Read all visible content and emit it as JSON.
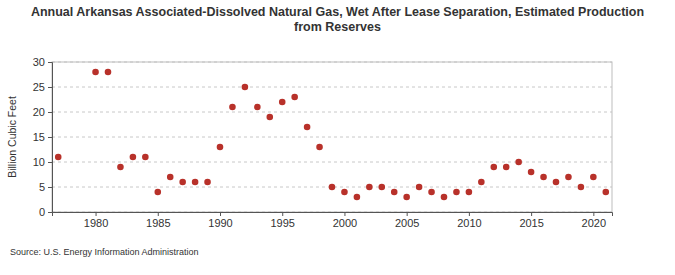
{
  "chart_data": {
    "type": "scatter",
    "title": "Annual Arkansas Associated-Dissolved Natural Gas, Wet After Lease Separation, Estimated Production from Reserves",
    "y_label": "Billion Cubic Feet",
    "source": "Source: U.S. Energy Information Administration",
    "x": [
      1977,
      1980,
      1981,
      1982,
      1983,
      1984,
      1985,
      1986,
      1987,
      1988,
      1989,
      1990,
      1991,
      1992,
      1993,
      1994,
      1995,
      1996,
      1997,
      1998,
      1999,
      2000,
      2001,
      2002,
      2003,
      2004,
      2005,
      2006,
      2007,
      2008,
      2009,
      2010,
      2011,
      2012,
      2013,
      2014,
      2015,
      2016,
      2017,
      2018,
      2019,
      2020,
      2021
    ],
    "values": [
      11,
      28,
      28,
      9,
      11,
      11,
      4,
      7,
      6,
      6,
      6,
      13,
      21,
      25,
      21,
      19,
      22,
      23,
      17,
      13,
      5,
      4,
      3,
      5,
      5,
      4,
      3,
      5,
      4,
      3,
      4,
      4,
      6,
      9,
      9,
      10,
      8,
      7,
      6,
      7,
      5,
      7,
      4
    ],
    "color": "#b8312a",
    "marker": "circle",
    "xlim": [
      1976.5,
      2021.5
    ],
    "xticks": [
      1980,
      1985,
      1990,
      1995,
      2000,
      2005,
      2010,
      2015,
      2020
    ],
    "ylim": [
      0,
      30
    ],
    "yticks": [
      0,
      5,
      10,
      15,
      20,
      25,
      30
    ],
    "grid": true
  }
}
